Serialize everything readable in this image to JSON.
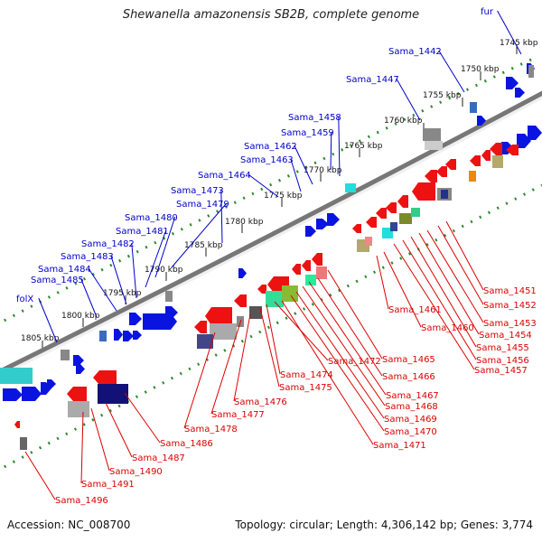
{
  "title": "Shewanella amazonensis SB2B, complete genome",
  "footer": {
    "accession": "Accession: NC_008700",
    "summary": "Topology: circular; Length: 4,306,142 bp; Genes: 3,774"
  },
  "colors": {
    "forward_label": "#0000cc",
    "reverse_label": "#dd0000",
    "backbone": "#777777",
    "scale_dots": "#2e8b2e",
    "forward_gene": "#0a14e0",
    "reverse_gene": "#ee1111"
  },
  "scale_ticks": [
    {
      "label": "1745 kbp"
    },
    {
      "label": "1750 kbp"
    },
    {
      "label": "1755 kbp"
    },
    {
      "label": "1760 kbp"
    },
    {
      "label": "1765 kbp"
    },
    {
      "label": "1770 kbp"
    },
    {
      "label": "1775 kbp"
    },
    {
      "label": "1780 kbp"
    },
    {
      "label": "1785 kbp"
    },
    {
      "label": "1790 kbp"
    },
    {
      "label": "1795 kbp"
    },
    {
      "label": "1800 kbp"
    },
    {
      "label": "1805 kbp"
    }
  ],
  "forward_labels": [
    "fur",
    "Sama_1442",
    "Sama_1447",
    "Sama_1458",
    "Sama_1459",
    "Sama_1462",
    "Sama_1463",
    "Sama_1464",
    "Sama_1473",
    "Sama_1479",
    "Sama_1480",
    "Sama_1481",
    "Sama_1482",
    "Sama_1483",
    "Sama_1484",
    "Sama_1485",
    "folX"
  ],
  "reverse_labels": [
    "Sama_1451",
    "Sama_1452",
    "Sama_1453",
    "Sama_1454",
    "Sama_1455",
    "Sama_1456",
    "Sama_1457",
    "Sama_1461",
    "Sama_1460",
    "Sama_1465",
    "Sama_1466",
    "Sama_1467",
    "Sama_1468",
    "Sama_1469",
    "Sama_1470",
    "Sama_1471",
    "Sama_1472",
    "Sama_1474",
    "Sama_1475",
    "Sama_1476",
    "Sama_1477",
    "Sama_1478",
    "Sama_1486",
    "Sama_1487",
    "Sama_1490",
    "Sama_1491",
    "Sama_1496"
  ]
}
